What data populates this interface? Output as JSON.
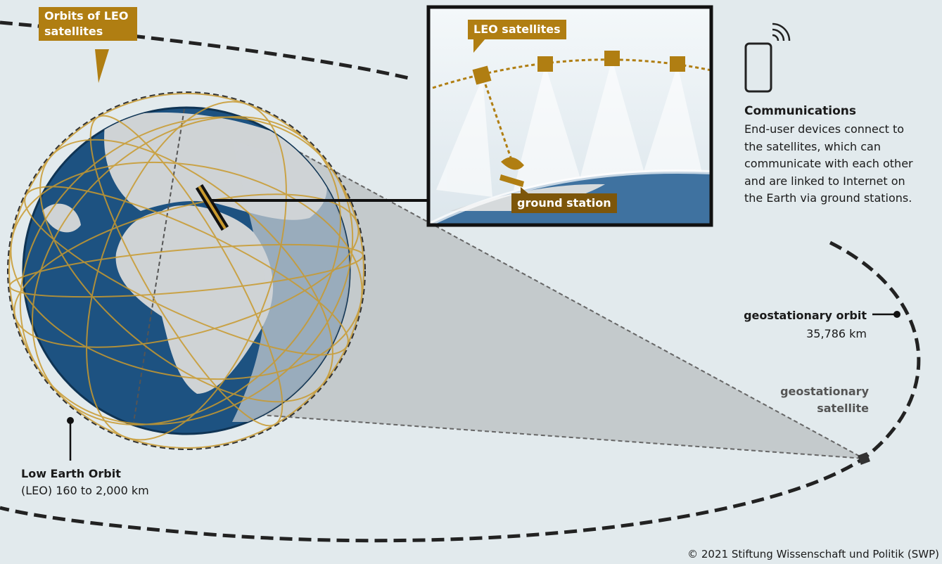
{
  "labels": {
    "leo_orbits": "Orbits of LEO satellites",
    "leo_satellites": "LEO satellites",
    "ground_station": "ground station",
    "communications_title": "Communications",
    "communications_text": "End-user devices connect to the satellites, which can communicate with each other and are linked to Internet on the Earth via ground stations.",
    "geo_orbit": "geostationary orbit",
    "geo_orbit_altitude": "35,786 km",
    "geo_satellite": "geostationary satellite",
    "leo_title": "Low Earth Orbit",
    "leo_altitude": "(LEO) 160 to 2,000 km",
    "copyright": "© 2021 Stiftung Wissenschaft und Politik (SWP)"
  }
}
